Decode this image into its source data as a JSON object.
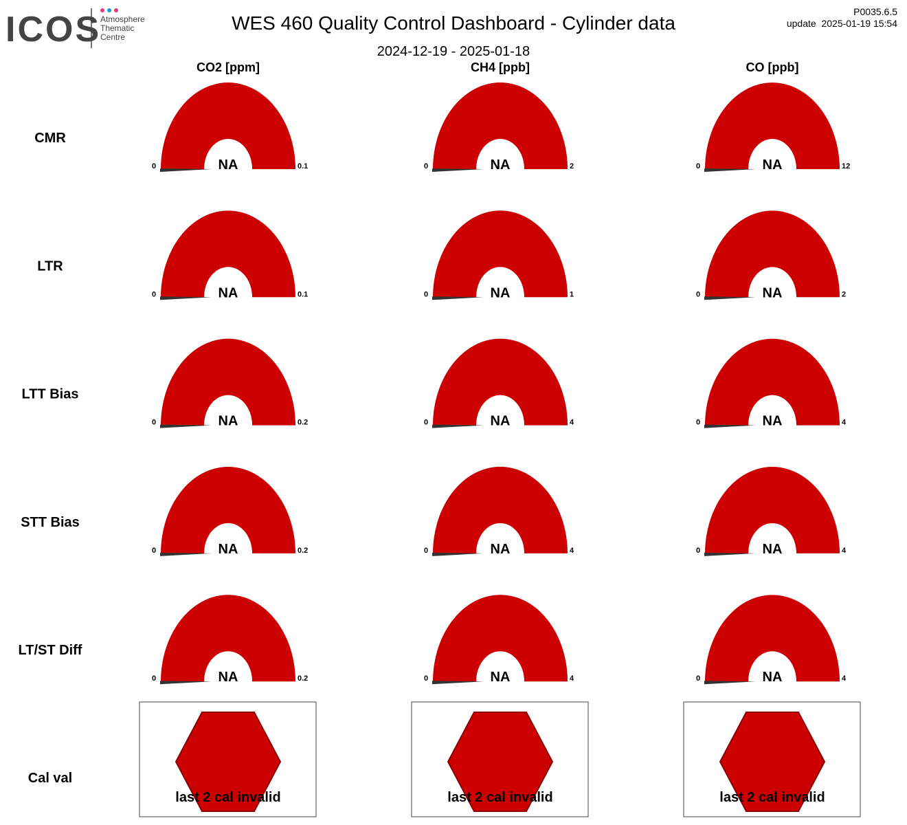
{
  "header": {
    "logo": "ICOS",
    "logo_sub": [
      "Atmosphere",
      "Thematic",
      "Centre"
    ],
    "title": "WES 460 Quality Control Dashboard - Cylinder data",
    "period": "2024-12-19 - 2025-01-18",
    "version": "P0035.6.5",
    "update": "update  2025-01-19 15:54"
  },
  "columns": [
    "CO2 [ppm]",
    "CH4 [ppb]",
    "CO [ppb]"
  ],
  "rows": [
    {
      "label": "CMR",
      "gauges": [
        {
          "min": 0,
          "max": 0.1,
          "value": "NA"
        },
        {
          "min": 0,
          "max": 2,
          "value": "NA"
        },
        {
          "min": 0,
          "max": 12,
          "value": "NA"
        }
      ]
    },
    {
      "label": "LTR",
      "gauges": [
        {
          "min": 0,
          "max": 0.1,
          "value": "NA"
        },
        {
          "min": 0,
          "max": 1,
          "value": "NA"
        },
        {
          "min": 0,
          "max": 2,
          "value": "NA"
        }
      ]
    },
    {
      "label": "LTT Bias",
      "gauges": [
        {
          "min": 0,
          "max": 0.2,
          "value": "NA"
        },
        {
          "min": 0,
          "max": 4,
          "value": "NA"
        },
        {
          "min": 0,
          "max": 4,
          "value": "NA"
        }
      ]
    },
    {
      "label": "STT Bias",
      "gauges": [
        {
          "min": 0,
          "max": 0.2,
          "value": "NA"
        },
        {
          "min": 0,
          "max": 4,
          "value": "NA"
        },
        {
          "min": 0,
          "max": 4,
          "value": "NA"
        }
      ]
    },
    {
      "label": "LT/ST Diff",
      "gauges": [
        {
          "min": 0,
          "max": 0.2,
          "value": "NA"
        },
        {
          "min": 0,
          "max": 4,
          "value": "NA"
        },
        {
          "min": 0,
          "max": 4,
          "value": "NA"
        }
      ]
    }
  ],
  "cal_val": {
    "label": "Cal val",
    "status": [
      "last 2 cal invalid",
      "last 2 cal invalid",
      "last 2 cal invalid"
    ]
  }
}
